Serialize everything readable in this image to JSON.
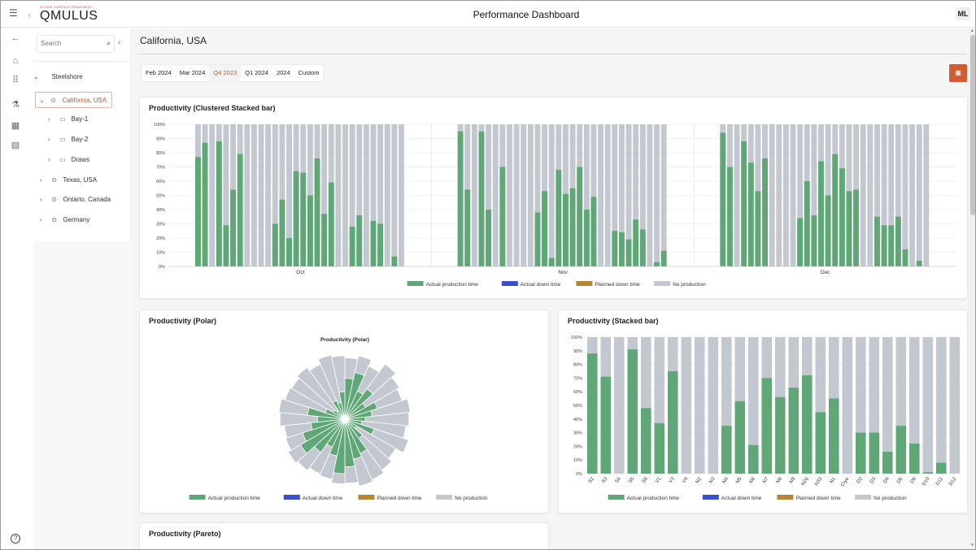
{
  "app": {
    "logo_tagline": "ACTIVE SURFACE TREATMENT",
    "logo_text": "QMULUS",
    "title": "Performance Dashboard",
    "user_initials": "ML"
  },
  "colors": {
    "accent": "#c9542d",
    "actual_production": "#5fa777",
    "actual_down": "#3b4fd6",
    "planned_down": "#b8862e",
    "no_production": "#c3c7cf"
  },
  "rail_icons": [
    "back-arrow-icon",
    "home-icon",
    "apps-grid-icon",
    "lab-flask-icon",
    "dashboard-icon",
    "report-icon"
  ],
  "tree": {
    "search_placeholder": "Search",
    "root": "Steelshore",
    "items": [
      {
        "label": "California, USA",
        "level": 1,
        "expanded": true,
        "active": true
      },
      {
        "label": "Bay-1",
        "level": 2
      },
      {
        "label": "Bay-2",
        "level": 2
      },
      {
        "label": "Draws",
        "level": 2
      },
      {
        "label": "Texas, USA",
        "level": 1
      },
      {
        "label": "Ontario, Canada",
        "level": 1
      },
      {
        "label": "Germany",
        "level": 1
      }
    ]
  },
  "main": {
    "location_title": "California, USA",
    "period_tabs": [
      "Feb 2024",
      "Mar 2024",
      "Q4 2023",
      "Q1 2024",
      "2024",
      "Custom"
    ],
    "active_period": "Q4 2023"
  },
  "legend": [
    "Actual production time",
    "Actual down time",
    "Planned down time",
    "No production"
  ],
  "cards": {
    "clustered": {
      "title": "Productivity (Clustered Stacked bar)"
    },
    "polar": {
      "title": "Productivity (Polar)"
    },
    "stacked": {
      "title": "Productivity (Stacked bar)"
    },
    "pareto": {
      "title": "Productivity (Pareto)"
    }
  },
  "chart_data": [
    {
      "type": "bar",
      "title": "Productivity (Clustered Stacked bar)",
      "stacked": true,
      "yticks": [
        "0%",
        "10%",
        "20%",
        "30%",
        "40%",
        "50%",
        "60%",
        "70%",
        "80%",
        "90%",
        "100%"
      ],
      "ylim": [
        0,
        100
      ],
      "categories": [
        "Oct",
        "Nov",
        "Dec"
      ],
      "legend": [
        "Actual production time",
        "Actual down time",
        "Planned down time",
        "No production"
      ],
      "series": [
        {
          "name": "Actual production time",
          "groups": [
            [
              77,
              87,
              0,
              88,
              29,
              54,
              79,
              0,
              0,
              0,
              0,
              30,
              47,
              20,
              67,
              66,
              50,
              76,
              37,
              59,
              0,
              0,
              28,
              36,
              0,
              32,
              30,
              0,
              7,
              0
            ],
            [
              95,
              54,
              0,
              95,
              40,
              0,
              70,
              0,
              0,
              0,
              0,
              38,
              53,
              6,
              68,
              51,
              55,
              70,
              40,
              49,
              0,
              0,
              25,
              24,
              19,
              33,
              26,
              0,
              3,
              11
            ],
            [
              94,
              70,
              0,
              88,
              73,
              53,
              76,
              0,
              0,
              0,
              0,
              34,
              60,
              36,
              74,
              50,
              79,
              69,
              53,
              54,
              0,
              0,
              35,
              29,
              29,
              35,
              12,
              0,
              4,
              0
            ]
          ]
        },
        {
          "name": "No production",
          "note": "remainder to 100%"
        }
      ]
    },
    {
      "type": "bar",
      "polar": true,
      "title": "Productivity (Polar)",
      "categories_count": 30,
      "values_actual_production": [
        60,
        70,
        45,
        55,
        35,
        50,
        40,
        30,
        25,
        45,
        20,
        35,
        55,
        60,
        70,
        80,
        55,
        45,
        60,
        75,
        65,
        50,
        40,
        55,
        30,
        20,
        15,
        30,
        25,
        40
      ],
      "values_no_production": [
        90,
        95,
        85,
        100,
        92,
        88,
        96,
        94,
        90,
        98,
        86,
        92,
        97,
        100,
        94,
        95,
        90,
        88,
        93,
        96,
        91,
        89,
        95,
        97,
        92,
        90,
        94,
        88,
        96,
        93
      ],
      "legend": [
        "Actual production time",
        "Actual down time",
        "Planned down time",
        "No production"
      ]
    },
    {
      "type": "bar",
      "title": "Productivity (Stacked bar)",
      "stacked": true,
      "yticks": [
        "0%",
        "10%",
        "20%",
        "30%",
        "40%",
        "50%",
        "60%",
        "70%",
        "80%",
        "90%",
        "100%"
      ],
      "ylim": [
        0,
        100
      ],
      "categories": [
        "S2",
        "S3",
        "S4",
        "S5",
        "S6",
        "V1",
        "V3",
        "V4",
        "N2",
        "N3",
        "N4",
        "N5",
        "N6",
        "N7",
        "N8",
        "N9",
        "N26",
        "N33",
        "N1",
        "Cryo",
        "D2",
        "D3",
        "D4",
        "D5",
        "D6",
        "D10",
        "D11",
        "D12"
      ],
      "series": [
        {
          "name": "Actual production time",
          "values": [
            88,
            71,
            0,
            91,
            48,
            37,
            75,
            0,
            0,
            0,
            35,
            53,
            21,
            70,
            56,
            63,
            72,
            45,
            55,
            0,
            30,
            30,
            16,
            35,
            22,
            1,
            8,
            0
          ]
        },
        {
          "name": "No production",
          "note": "remainder to 100%"
        }
      ],
      "legend": [
        "Actual production time",
        "Actual down time",
        "Planned down time",
        "No production"
      ]
    }
  ]
}
